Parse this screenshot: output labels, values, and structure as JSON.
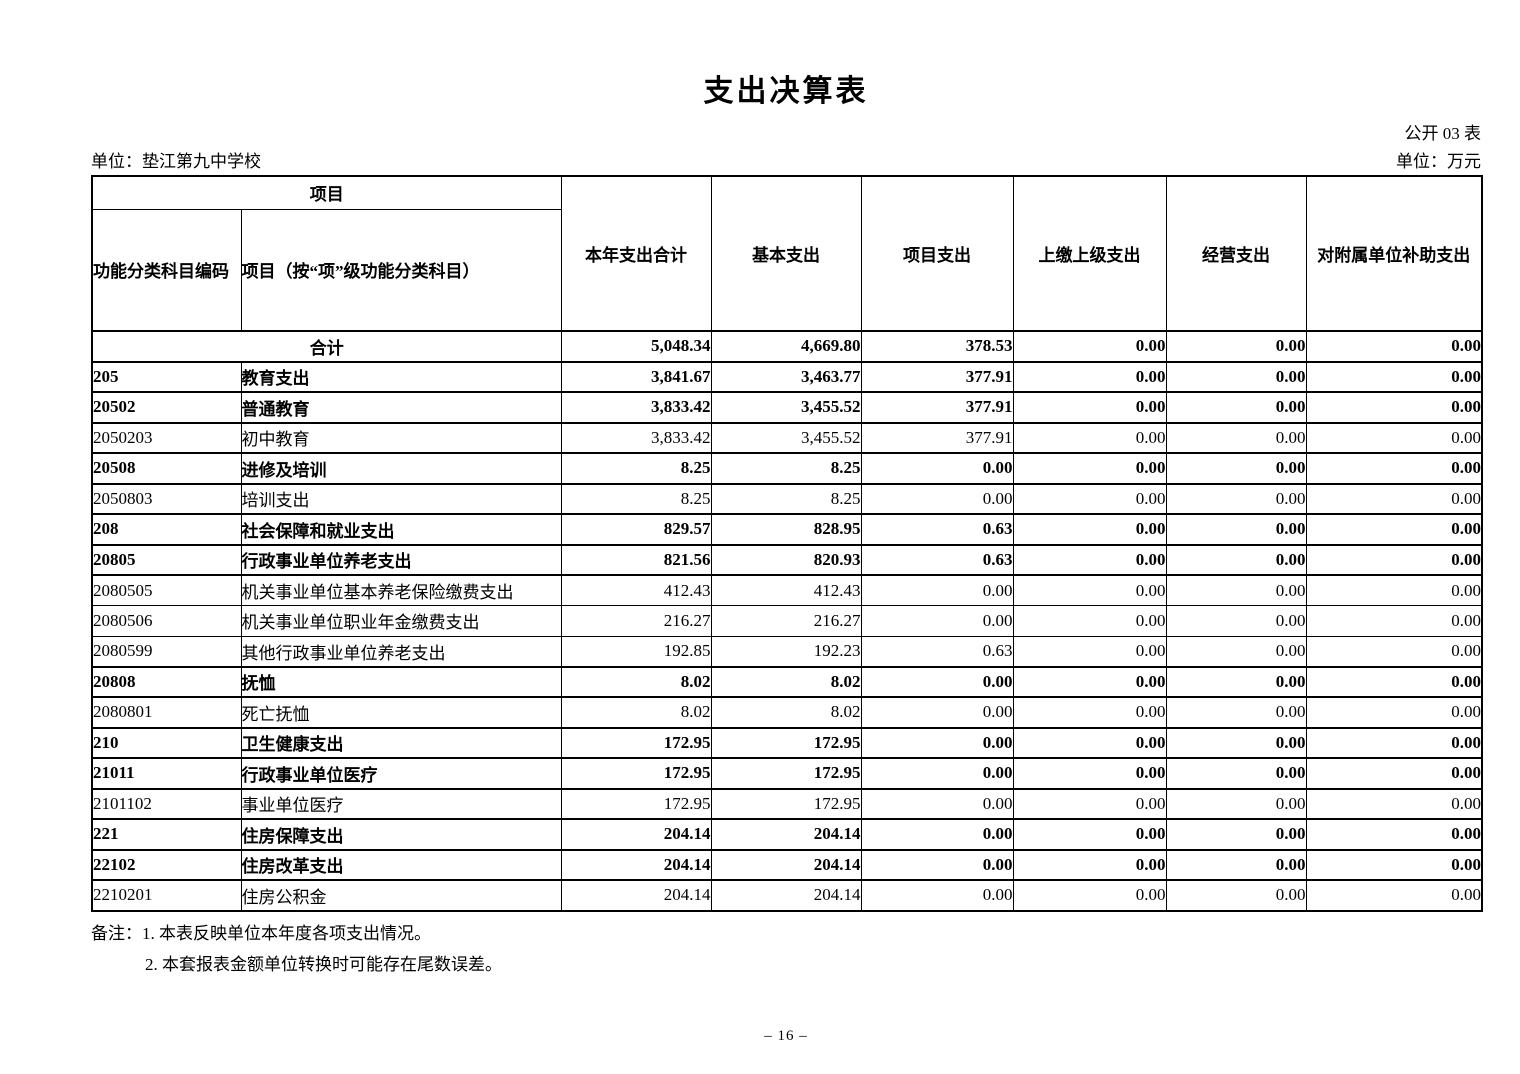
{
  "page": {
    "title": "支出决算表",
    "form_code": "公开 03 表",
    "unit_name": "单位：垫江第九中学校",
    "unit_currency": "单位：万元",
    "note_line_1": "备注：1. 本表反映单位本年度各项支出情况。",
    "note_line_2": "2. 本套报表金额单位转换时可能存在尾数误差。",
    "page_number": "– 16 –"
  },
  "table": {
    "header": {
      "project_group": "项目",
      "code_label": "功能分类科目编码",
      "name_label": "项目（按“项”级功能分类科目）",
      "cols": [
        "本年支出合计",
        "基本支出",
        "项目支出",
        "上缴上级支出",
        "经营支出",
        "对附属单位补助支出"
      ]
    },
    "rows": [
      {
        "code": "",
        "name": "合计",
        "merged": true,
        "bold": true,
        "values": [
          "5,048.34",
          "4,669.80",
          "378.53",
          "0.00",
          "0.00",
          "0.00"
        ]
      },
      {
        "code": "205",
        "name": "教育支出",
        "bold": true,
        "values": [
          "3,841.67",
          "3,463.77",
          "377.91",
          "0.00",
          "0.00",
          "0.00"
        ]
      },
      {
        "code": "20502",
        "name": "普通教育",
        "bold": true,
        "values": [
          "3,833.42",
          "3,455.52",
          "377.91",
          "0.00",
          "0.00",
          "0.00"
        ]
      },
      {
        "code": "2050203",
        "name": "初中教育",
        "bold": false,
        "values": [
          "3,833.42",
          "3,455.52",
          "377.91",
          "0.00",
          "0.00",
          "0.00"
        ]
      },
      {
        "code": "20508",
        "name": "进修及培训",
        "bold": true,
        "values": [
          "8.25",
          "8.25",
          "0.00",
          "0.00",
          "0.00",
          "0.00"
        ]
      },
      {
        "code": "2050803",
        "name": "培训支出",
        "bold": false,
        "values": [
          "8.25",
          "8.25",
          "0.00",
          "0.00",
          "0.00",
          "0.00"
        ]
      },
      {
        "code": "208",
        "name": "社会保障和就业支出",
        "bold": true,
        "values": [
          "829.57",
          "828.95",
          "0.63",
          "0.00",
          "0.00",
          "0.00"
        ]
      },
      {
        "code": "20805",
        "name": "行政事业单位养老支出",
        "bold": true,
        "values": [
          "821.56",
          "820.93",
          "0.63",
          "0.00",
          "0.00",
          "0.00"
        ]
      },
      {
        "code": "2080505",
        "name": "机关事业单位基本养老保险缴费支出",
        "bold": false,
        "values": [
          "412.43",
          "412.43",
          "0.00",
          "0.00",
          "0.00",
          "0.00"
        ]
      },
      {
        "code": "2080506",
        "name": "机关事业单位职业年金缴费支出",
        "bold": false,
        "values": [
          "216.27",
          "216.27",
          "0.00",
          "0.00",
          "0.00",
          "0.00"
        ]
      },
      {
        "code": "2080599",
        "name": "其他行政事业单位养老支出",
        "bold": false,
        "values": [
          "192.85",
          "192.23",
          "0.63",
          "0.00",
          "0.00",
          "0.00"
        ]
      },
      {
        "code": "20808",
        "name": "抚恤",
        "bold": true,
        "values": [
          "8.02",
          "8.02",
          "0.00",
          "0.00",
          "0.00",
          "0.00"
        ]
      },
      {
        "code": "2080801",
        "name": "死亡抚恤",
        "bold": false,
        "values": [
          "8.02",
          "8.02",
          "0.00",
          "0.00",
          "0.00",
          "0.00"
        ]
      },
      {
        "code": "210",
        "name": "卫生健康支出",
        "bold": true,
        "values": [
          "172.95",
          "172.95",
          "0.00",
          "0.00",
          "0.00",
          "0.00"
        ]
      },
      {
        "code": "21011",
        "name": "行政事业单位医疗",
        "bold": true,
        "values": [
          "172.95",
          "172.95",
          "0.00",
          "0.00",
          "0.00",
          "0.00"
        ]
      },
      {
        "code": "2101102",
        "name": "事业单位医疗",
        "bold": false,
        "values": [
          "172.95",
          "172.95",
          "0.00",
          "0.00",
          "0.00",
          "0.00"
        ]
      },
      {
        "code": "221",
        "name": "住房保障支出",
        "bold": true,
        "values": [
          "204.14",
          "204.14",
          "0.00",
          "0.00",
          "0.00",
          "0.00"
        ]
      },
      {
        "code": "22102",
        "name": "住房改革支出",
        "bold": true,
        "values": [
          "204.14",
          "204.14",
          "0.00",
          "0.00",
          "0.00",
          "0.00"
        ]
      },
      {
        "code": "2210201",
        "name": "住房公积金",
        "bold": false,
        "values": [
          "204.14",
          "204.14",
          "0.00",
          "0.00",
          "0.00",
          "0.00"
        ]
      }
    ]
  }
}
